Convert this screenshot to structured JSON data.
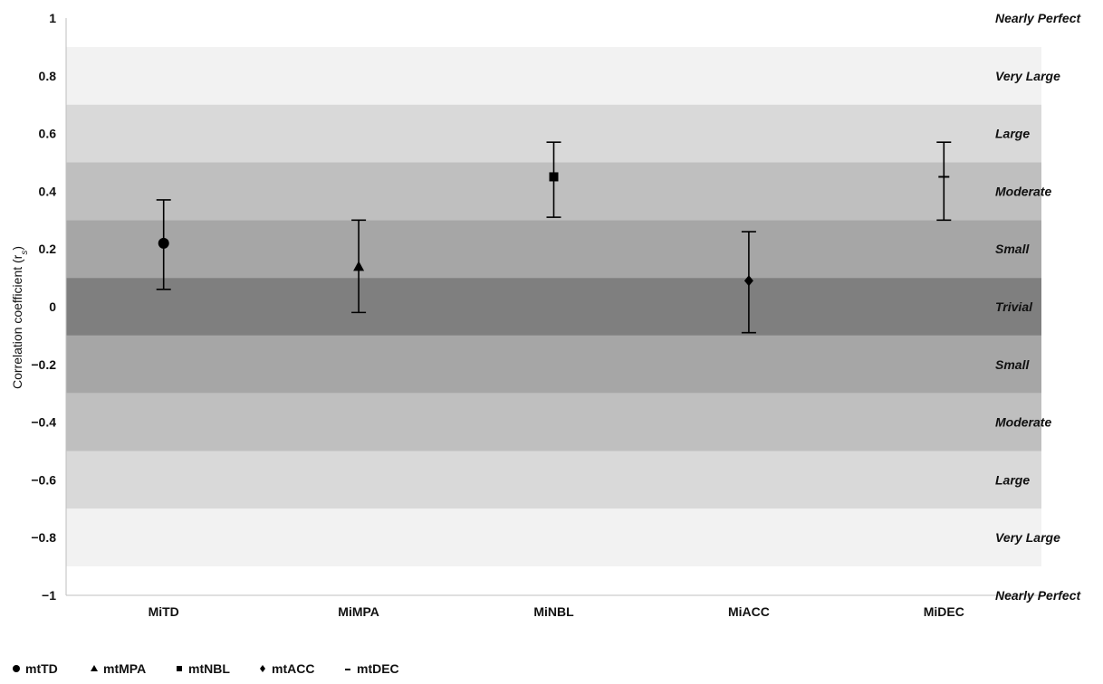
{
  "chart_data": {
    "type": "scatter",
    "title": "",
    "xlabel": "",
    "ylabel": "Correlation coefficient (r",
    "ylabel_subscript": "s",
    "ylabel_suffix": ")",
    "ylim": [
      -1,
      1
    ],
    "yticks": [
      {
        "value": 1,
        "label": "1"
      },
      {
        "value": 0.8,
        "label": "0.8"
      },
      {
        "value": 0.6,
        "label": "0.6"
      },
      {
        "value": 0.4,
        "label": "0.4"
      },
      {
        "value": 0.2,
        "label": "0.2"
      },
      {
        "value": 0,
        "label": "0"
      },
      {
        "value": -0.2,
        "label": "−0.2"
      },
      {
        "value": -0.4,
        "label": "−0.4"
      },
      {
        "value": -0.6,
        "label": "−0.6"
      },
      {
        "value": -0.8,
        "label": "−0.8"
      },
      {
        "value": -1,
        "label": "−1"
      }
    ],
    "categories": [
      "MiTD",
      "MiMPA",
      "MiNBL",
      "MiACC",
      "MiDEC"
    ],
    "bands": [
      {
        "from": 0.9,
        "to": 1.0,
        "label": "Nearly Perfect",
        "color": "#ffffff"
      },
      {
        "from": 0.7,
        "to": 0.9,
        "label": "Very Large",
        "color": "#f2f2f2"
      },
      {
        "from": 0.5,
        "to": 0.7,
        "label": "Large",
        "color": "#d9d9d9"
      },
      {
        "from": 0.3,
        "to": 0.5,
        "label": "Moderate",
        "color": "#bfbfbf"
      },
      {
        "from": 0.1,
        "to": 0.3,
        "label": "Small",
        "color": "#a6a6a6"
      },
      {
        "from": -0.1,
        "to": 0.1,
        "label": "Trivial",
        "color": "#7f7f7f"
      },
      {
        "from": -0.3,
        "to": -0.1,
        "label": "Small",
        "color": "#a6a6a6"
      },
      {
        "from": -0.5,
        "to": -0.3,
        "label": "Moderate",
        "color": "#bfbfbf"
      },
      {
        "from": -0.7,
        "to": -0.5,
        "label": "Large",
        "color": "#d9d9d9"
      },
      {
        "from": -0.9,
        "to": -0.7,
        "label": "Very Large",
        "color": "#f2f2f2"
      },
      {
        "from": -1.0,
        "to": -0.9,
        "label": "Nearly Perfect",
        "color": "#ffffff"
      }
    ],
    "series": [
      {
        "name": "mtTD",
        "marker": "circle",
        "category": "MiTD",
        "value": 0.22,
        "lower": 0.06,
        "upper": 0.37
      },
      {
        "name": "mtMPA",
        "marker": "triangle",
        "category": "MiMPA",
        "value": 0.14,
        "lower": -0.02,
        "upper": 0.3
      },
      {
        "name": "mtNBL",
        "marker": "square",
        "category": "MiNBL",
        "value": 0.45,
        "lower": 0.31,
        "upper": 0.57
      },
      {
        "name": "mtACC",
        "marker": "diamond",
        "category": "MiACC",
        "value": 0.09,
        "lower": -0.09,
        "upper": 0.26
      },
      {
        "name": "mtDEC",
        "marker": "dash",
        "category": "MiDEC",
        "value": 0.45,
        "lower": 0.3,
        "upper": 0.57
      }
    ],
    "legend": {
      "position": "bottom-left"
    },
    "grid": false
  },
  "colors": {
    "marker": "#000000",
    "axis": "#bfbfbf"
  }
}
